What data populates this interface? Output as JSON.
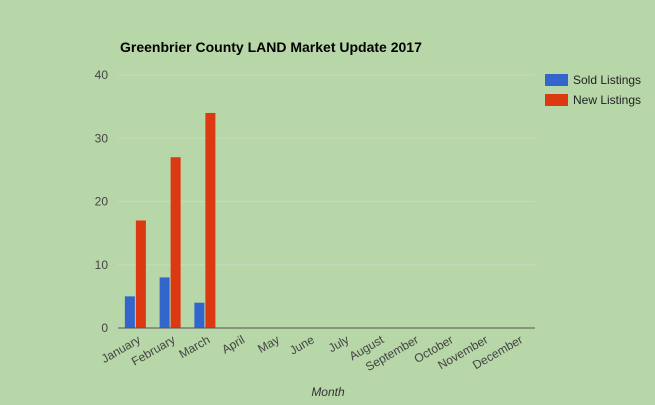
{
  "chart_data": {
    "type": "bar",
    "title": "Greenbrier County LAND Market Update 2017",
    "xlabel": "Month",
    "ylabel": "",
    "ylim": [
      0,
      40
    ],
    "yticks": [
      0,
      10,
      20,
      30,
      40
    ],
    "grid": true,
    "legend_position": "right",
    "categories": [
      "January",
      "February",
      "March",
      "April",
      "May",
      "June",
      "July",
      "August",
      "September",
      "October",
      "November",
      "December"
    ],
    "series": [
      {
        "name": "Sold Listings",
        "color": "#3366cc",
        "values": [
          5,
          8,
          4,
          null,
          null,
          null,
          null,
          null,
          null,
          null,
          null,
          null
        ]
      },
      {
        "name": "New Listings",
        "color": "#dc3912",
        "values": [
          17,
          27,
          34,
          null,
          null,
          null,
          null,
          null,
          null,
          null,
          null,
          null
        ]
      }
    ]
  }
}
